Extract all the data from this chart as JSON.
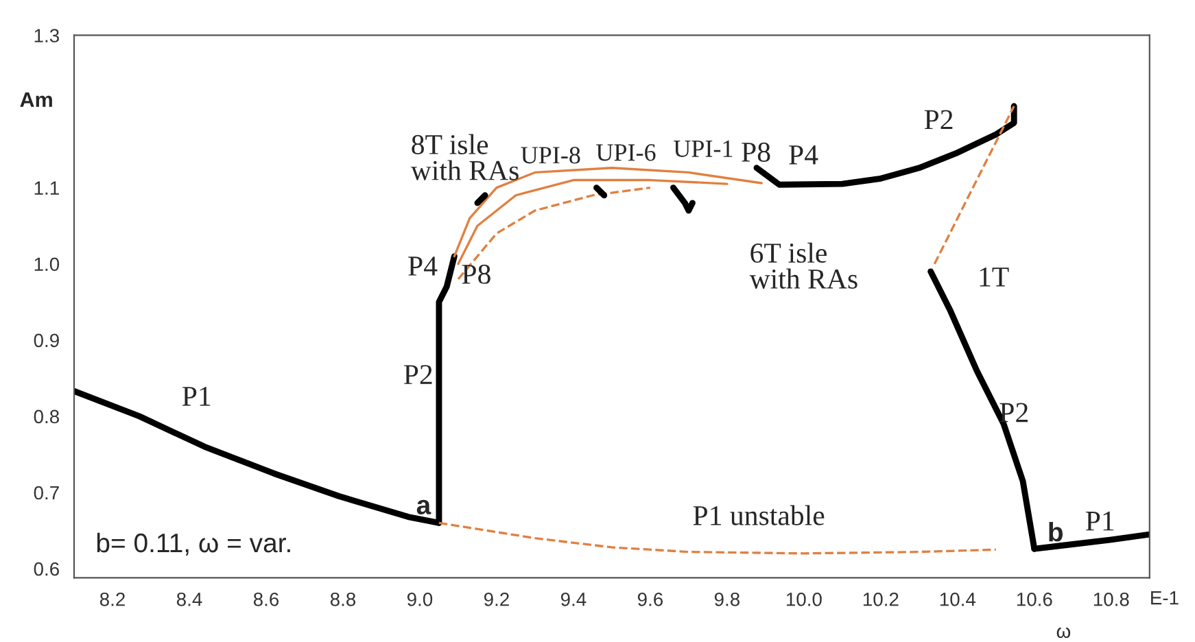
{
  "chart_data": {
    "type": "line",
    "xlabel": "ω",
    "ylabel": "Am",
    "xlim": [
      8.1,
      10.9
    ],
    "ylim": [
      0.588,
      1.3
    ],
    "xticks": [
      8.2,
      8.4,
      8.6,
      8.8,
      {
        "value": 9,
        "label": "9.0"
      },
      9.2,
      9.4,
      9.6,
      9.8,
      {
        "value": 10,
        "label": "10.0"
      },
      10.2,
      10.4,
      10.6,
      10.8
    ],
    "yticks": [
      0.6,
      0.7,
      0.8,
      0.9,
      {
        "value": 1,
        "label": "1.0"
      },
      1.1,
      1.3
    ],
    "grid": false,
    "legend": false,
    "marker": "none",
    "series": [
      {
        "color": "#000000",
        "line_style": "solid",
        "x": [
          8.1,
          8.27,
          8.44,
          8.62,
          8.79,
          8.97,
          9.05
        ],
        "values": [
          0.833,
          0.8,
          0.76,
          0.725,
          0.695,
          0.668,
          0.66
        ]
      },
      {
        "color": "#000000",
        "line_style": "solid",
        "x": [
          9.05,
          9.05,
          9.07,
          9.09
        ],
        "values": [
          0.66,
          0.95,
          0.97,
          1.01
        ]
      },
      {
        "color": "#e08040",
        "line_style": "dashed",
        "x": [
          9.05,
          9.3,
          9.5,
          9.7,
          10.0,
          10.3,
          10.5
        ],
        "values": [
          0.66,
          0.64,
          0.628,
          0.622,
          0.62,
          0.622,
          0.625
        ]
      },
      {
        "color": "#e08040",
        "line_style": "solid",
        "x": [
          9.09,
          9.13,
          9.2,
          9.3,
          9.5,
          9.7,
          9.89
        ],
        "values": [
          1.01,
          1.06,
          1.1,
          1.12,
          1.126,
          1.12,
          1.106
        ]
      },
      {
        "color": "#e08040",
        "line_style": "solid",
        "x": [
          9.1,
          9.15,
          9.25,
          9.4,
          9.6,
          9.8
        ],
        "values": [
          1.0,
          1.05,
          1.09,
          1.11,
          1.11,
          1.105
        ]
      },
      {
        "color": "#e08040",
        "line_style": "dashed",
        "x": [
          9.1,
          9.2,
          9.3,
          9.45,
          9.6
        ],
        "values": [
          0.98,
          1.04,
          1.07,
          1.09,
          1.1
        ]
      },
      {
        "color": "#000000",
        "line_style": "solid",
        "x": [
          9.15,
          9.17
        ],
        "values": [
          1.08,
          1.09
        ]
      },
      {
        "color": "#000000",
        "line_style": "solid",
        "x": [
          9.46,
          9.48
        ],
        "values": [
          1.1,
          1.09
        ]
      },
      {
        "color": "#000000",
        "line_style": "solid",
        "x": [
          9.66,
          9.69,
          9.7,
          9.71
        ],
        "values": [
          1.1,
          1.08,
          1.07,
          1.08
        ]
      },
      {
        "color": "#000000",
        "line_style": "solid",
        "x": [
          9.877,
          9.936,
          10.1,
          10.2,
          10.3,
          10.4,
          10.5,
          10.547,
          10.547
        ],
        "values": [
          1.126,
          1.104,
          1.105,
          1.112,
          1.126,
          1.146,
          1.17,
          1.185,
          1.207
        ]
      },
      {
        "color": "#e08040",
        "line_style": "dashed",
        "x": [
          10.34,
          10.547
        ],
        "values": [
          1.0,
          1.207
        ]
      },
      {
        "color": "#000000",
        "line_style": "solid",
        "x": [
          10.33,
          10.38,
          10.45,
          10.52,
          10.57,
          10.6
        ],
        "values": [
          0.99,
          0.94,
          0.86,
          0.79,
          0.715,
          0.626
        ]
      },
      {
        "color": "#000000",
        "line_style": "solid",
        "x": [
          10.6,
          10.7,
          10.8,
          10.9
        ],
        "values": [
          0.626,
          0.632,
          0.638,
          0.645
        ]
      }
    ],
    "annotations": [
      "P1",
      "P2",
      "P4",
      "P8",
      "a",
      "8T isle\nwith RAs",
      "UPI-8",
      "UPI-6",
      "UPI-1",
      "P8",
      "P4",
      "P2",
      "6T isle\nwith RAs",
      "1T",
      "P2",
      "b",
      "P1",
      "P1 unstable",
      "b= 0.11, ω = var.",
      "E-1"
    ]
  }
}
